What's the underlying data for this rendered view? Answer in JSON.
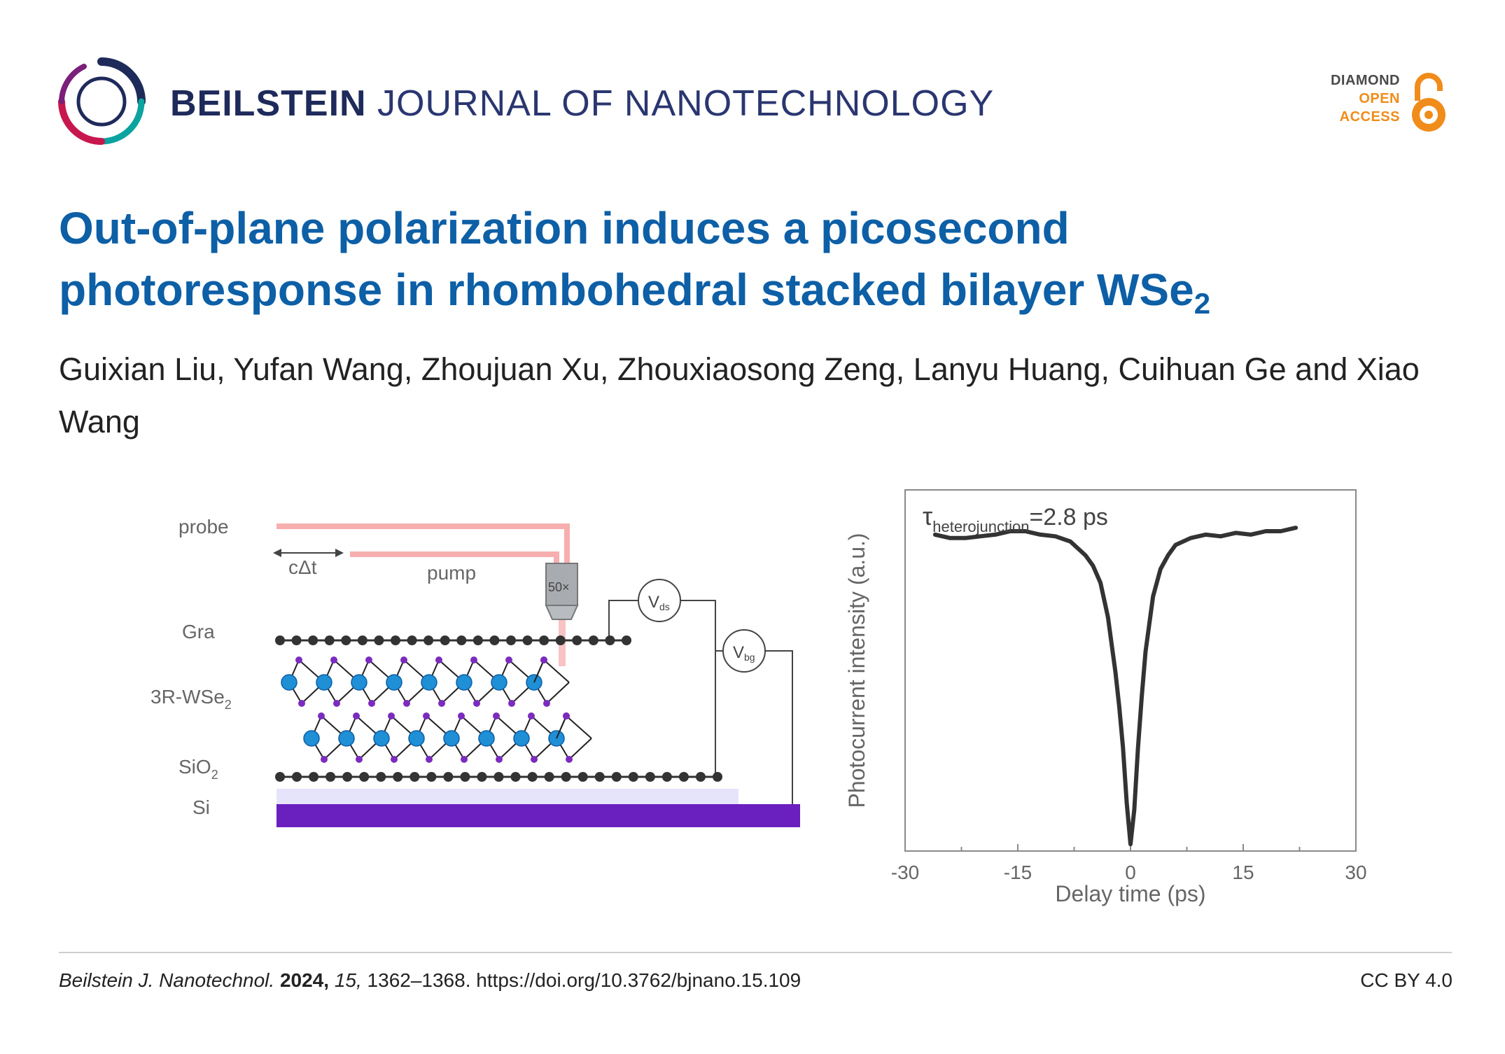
{
  "header": {
    "journal_bold": "BEILSTEIN",
    "journal_rest": "JOURNAL OF NANOTECHNOLOGY",
    "access_badge": {
      "line1": "DIAMOND",
      "line2": "OPEN",
      "line3": "ACCESS"
    }
  },
  "article": {
    "title_main": "Out-of-plane polarization induces a picosecond photoresponse in rhombohedral stacked bilayer WSe",
    "title_sub": "2",
    "authors": "Guixian Liu, Yufan Wang, Zhoujuan Xu, Zhouxiaosong Zeng, Lanyu Huang, Cuihuan Ge and Xiao Wang"
  },
  "schematic": {
    "labels": {
      "probe": "probe",
      "delay": "cΔt",
      "pump": "pump",
      "objective": "50×",
      "vds_main": "V",
      "vds_sub": "ds",
      "vbg_main": "V",
      "vbg_sub": "bg",
      "gra": "Gra",
      "wse2_main": "3R-WSe",
      "wse2_sub": "2",
      "sio2_main": "SiO",
      "sio2_sub": "2",
      "si": "Si"
    }
  },
  "chart_data": {
    "type": "line",
    "title": "",
    "annotation_symbol": "τ",
    "annotation_subscript": "heterojunction",
    "annotation_value": "=2.8 ps",
    "xlabel": "Delay time (ps)",
    "ylabel": "Photocurrent intensity (a.u.)",
    "xlim": [
      -30,
      30
    ],
    "ylim": [
      0,
      1.05
    ],
    "xticks": [
      -30,
      -15,
      0,
      15,
      30
    ],
    "xtick_labels": [
      "-30",
      "-15",
      "0",
      "15",
      "30"
    ],
    "series": [
      {
        "name": "photocurrent",
        "x": [
          -26,
          -24,
          -22,
          -20,
          -18,
          -16,
          -14,
          -12,
          -10,
          -8,
          -6,
          -5,
          -4,
          -3,
          -2,
          -1.5,
          -1,
          -0.5,
          0,
          0.5,
          1,
          1.5,
          2,
          3,
          4,
          5,
          6,
          8,
          10,
          12,
          14,
          16,
          18,
          20,
          22
        ],
        "y": [
          0.92,
          0.91,
          0.91,
          0.915,
          0.92,
          0.93,
          0.93,
          0.92,
          0.915,
          0.9,
          0.86,
          0.83,
          0.78,
          0.68,
          0.52,
          0.42,
          0.3,
          0.14,
          0.02,
          0.12,
          0.3,
          0.45,
          0.58,
          0.74,
          0.82,
          0.86,
          0.89,
          0.91,
          0.92,
          0.915,
          0.925,
          0.92,
          0.93,
          0.93,
          0.94
        ]
      }
    ]
  },
  "footer": {
    "journal_abbrev": "Beilstein J. Nanotechnol.",
    "year": "2024,",
    "volume": "15,",
    "rest": "1362–1368. https://doi.org/10.3762/bjnano.15.109",
    "license": "CC BY 4.0"
  },
  "colors": {
    "title_blue": "#0d5fa6",
    "journal_navy": "#1e2a5a",
    "open_access_orange": "#f08c1a",
    "substrate_purple": "#6a1fbf",
    "laser_red": "#f4a0a0"
  }
}
